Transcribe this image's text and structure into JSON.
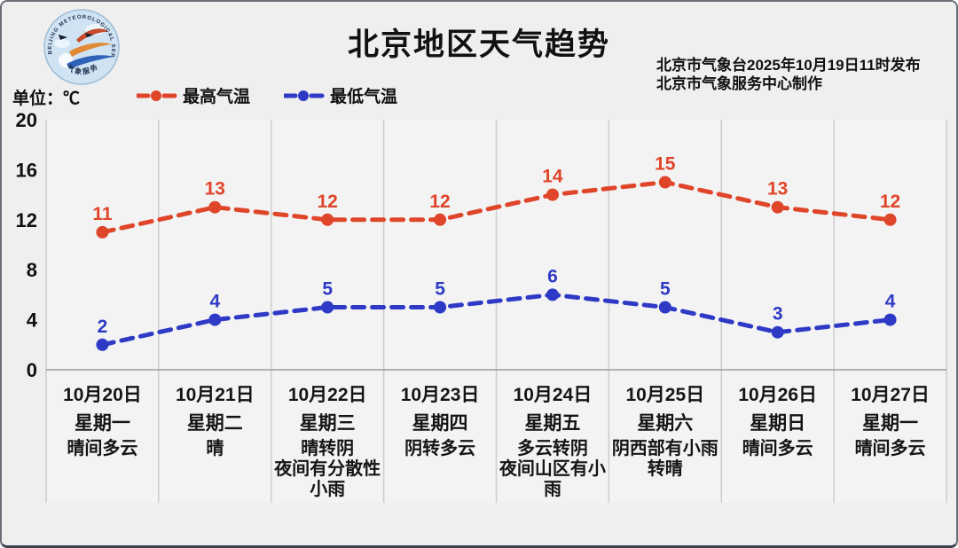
{
  "header": {
    "title": "北京地区天气趋势",
    "publisher_line1": "北京市气象台2025年10月19日11时发布",
    "publisher_line2": "北京市气象服务中心制作",
    "unit_label": "单位：℃",
    "logo": {
      "arc_text": "BEIJING METEOROLOGICAL SERVICE",
      "bottom_text": "气象服务"
    }
  },
  "legend": [
    {
      "label": "最高气温",
      "color": "#df4529"
    },
    {
      "label": "最低气温",
      "color": "#2e3ac5"
    }
  ],
  "chart_data": {
    "type": "line",
    "title": "北京地区天气趋势",
    "unit": "℃",
    "ylim": [
      0,
      20
    ],
    "yticks": [
      0,
      4,
      8,
      12,
      16,
      20
    ],
    "grid": "vertical",
    "legend_position": "top-left",
    "line_style": "dashed-with-dots",
    "categories": [
      {
        "date": "10月20日",
        "weekday": "星期一",
        "weather": [
          "晴间多云"
        ]
      },
      {
        "date": "10月21日",
        "weekday": "星期二",
        "weather": [
          "晴"
        ]
      },
      {
        "date": "10月22日",
        "weekday": "星期三",
        "weather": [
          "晴转阴",
          "夜间有分散性",
          "小雨"
        ]
      },
      {
        "date": "10月23日",
        "weekday": "星期四",
        "weather": [
          "阴转多云"
        ]
      },
      {
        "date": "10月24日",
        "weekday": "星期五",
        "weather": [
          "多云转阴",
          "夜间山区有小",
          "雨"
        ]
      },
      {
        "date": "10月25日",
        "weekday": "星期六",
        "weather": [
          "阴西部有小雨",
          "转晴"
        ]
      },
      {
        "date": "10月26日",
        "weekday": "星期日",
        "weather": [
          "晴间多云"
        ]
      },
      {
        "date": "10月27日",
        "weekday": "星期一",
        "weather": [
          "晴间多云"
        ]
      }
    ],
    "series": [
      {
        "name": "最高气温",
        "color": "#df4529",
        "values": [
          11,
          13,
          12,
          12,
          14,
          15,
          13,
          12
        ]
      },
      {
        "name": "最低气温",
        "color": "#2e3ac5",
        "values": [
          2,
          4,
          5,
          5,
          6,
          5,
          3,
          4
        ]
      }
    ]
  }
}
